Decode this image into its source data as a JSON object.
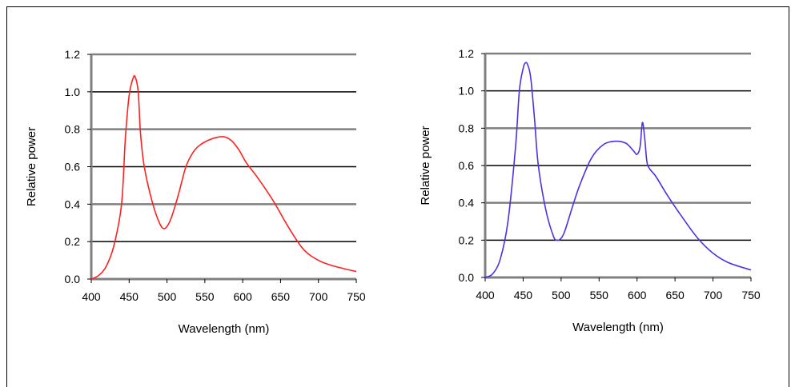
{
  "chart_data": [
    {
      "type": "line",
      "title": "",
      "xlabel": "Wavelength (nm)",
      "ylabel": "Relative power",
      "xlim": [
        400,
        750
      ],
      "ylim": [
        0,
        1.2
      ],
      "xticks": [
        "400",
        "450",
        "500",
        "550",
        "600",
        "650",
        "700",
        "750"
      ],
      "yticks": [
        "0.0",
        "0.2",
        "0.4",
        "0.6",
        "0.8",
        "1.0",
        "1.2"
      ],
      "grid": "horizontal",
      "colors": {
        "line": "#ff2020",
        "grid": "#000000",
        "grid_alt": "#808080"
      },
      "series": [
        {
          "x": [
            400,
            410,
            420,
            430,
            440,
            445,
            450,
            455,
            458,
            462,
            465,
            470,
            480,
            490,
            497,
            505,
            515,
            525,
            535,
            545,
            560,
            575,
            585,
            595,
            605,
            620,
            640,
            660,
            680,
            700,
            720,
            750
          ],
          "y": [
            0.0,
            0.02,
            0.07,
            0.18,
            0.4,
            0.75,
            0.98,
            1.07,
            1.08,
            1.0,
            0.78,
            0.6,
            0.42,
            0.3,
            0.27,
            0.32,
            0.45,
            0.6,
            0.68,
            0.72,
            0.75,
            0.76,
            0.74,
            0.69,
            0.62,
            0.54,
            0.42,
            0.28,
            0.16,
            0.1,
            0.07,
            0.04
          ]
        }
      ]
    },
    {
      "type": "line",
      "title": "",
      "xlabel": "Wavelength (nm)",
      "ylabel": "Relative power",
      "xlim": [
        400,
        750
      ],
      "ylim": [
        0,
        1.2
      ],
      "xticks": [
        "400",
        "450",
        "500",
        "550",
        "600",
        "650",
        "700",
        "750"
      ],
      "yticks": [
        "0.0",
        "0.2",
        "0.4",
        "0.6",
        "0.8",
        "1.0",
        "1.2"
      ],
      "grid": "horizontal",
      "colors": {
        "line": "#5030e0",
        "grid": "#000000",
        "grid_alt": "#808080"
      },
      "series": [
        {
          "x": [
            400,
            410,
            420,
            430,
            440,
            445,
            450,
            453,
            456,
            460,
            465,
            470,
            480,
            490,
            495,
            500,
            505,
            515,
            525,
            540,
            555,
            570,
            585,
            595,
            600,
            604,
            607,
            610,
            613,
            617,
            625,
            640,
            660,
            680,
            700,
            720,
            750
          ],
          "y": [
            0.0,
            0.02,
            0.1,
            0.3,
            0.7,
            1.0,
            1.12,
            1.15,
            1.14,
            1.07,
            0.85,
            0.6,
            0.36,
            0.22,
            0.2,
            0.21,
            0.25,
            0.38,
            0.5,
            0.64,
            0.71,
            0.73,
            0.72,
            0.68,
            0.66,
            0.7,
            0.83,
            0.75,
            0.62,
            0.58,
            0.54,
            0.44,
            0.32,
            0.21,
            0.13,
            0.08,
            0.04
          ]
        }
      ]
    }
  ]
}
